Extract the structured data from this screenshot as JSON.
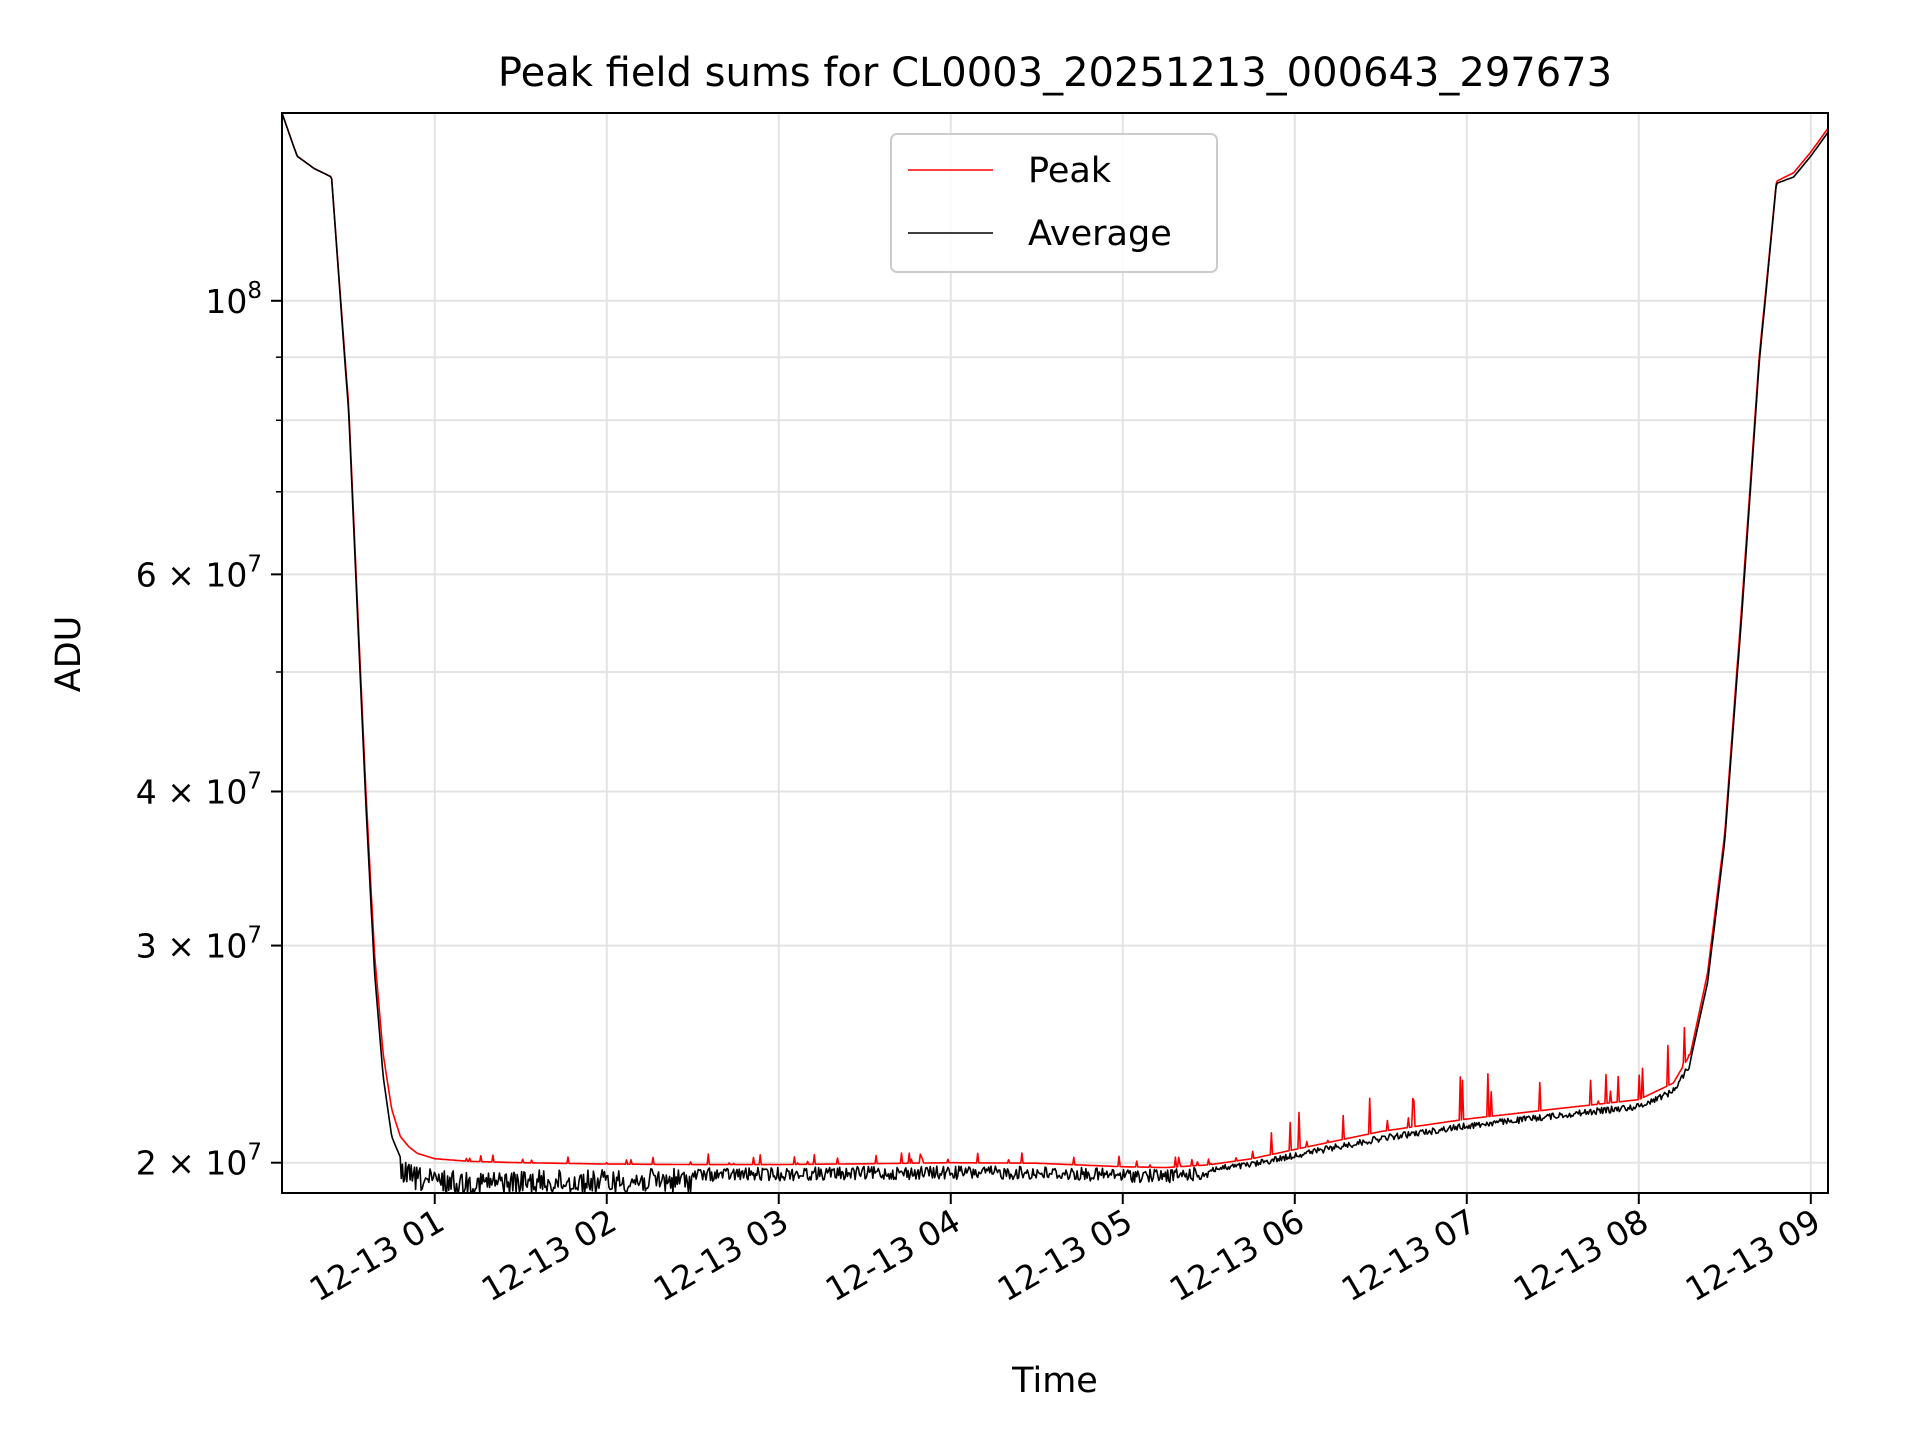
{
  "chart_data": {
    "type": "line",
    "title": "Peak field sums for CL0003_20251213_000643_297673",
    "xlabel": "Time",
    "ylabel": "ADU",
    "yscale": "log",
    "xlim_hours": [
      0.112,
      9.1
    ],
    "ylim": [
      18900000,
      142000000
    ],
    "grid": true,
    "legend": {
      "location": "upper center",
      "entries": [
        "Peak",
        "Average"
      ]
    },
    "x_ticks": [
      {
        "value": 1,
        "label": "12-13 01"
      },
      {
        "value": 2,
        "label": "12-13 02"
      },
      {
        "value": 3,
        "label": "12-13 03"
      },
      {
        "value": 4,
        "label": "12-13 04"
      },
      {
        "value": 5,
        "label": "12-13 05"
      },
      {
        "value": 6,
        "label": "12-13 06"
      },
      {
        "value": 7,
        "label": "12-13 07"
      },
      {
        "value": 8,
        "label": "12-13 08"
      },
      {
        "value": 9,
        "label": "12-13 09"
      }
    ],
    "y_ticks": [
      {
        "value": 20000000,
        "base": "2 × 10",
        "exp": "7"
      },
      {
        "value": 30000000,
        "base": "3 × 10",
        "exp": "7"
      },
      {
        "value": 40000000,
        "base": "4 × 10",
        "exp": "7"
      },
      {
        "value": 60000000,
        "base": "6 × 10",
        "exp": "7"
      },
      {
        "value": 100000000,
        "base": "10",
        "exp": "8"
      }
    ],
    "y_minor_ticks": [
      50000000,
      70000000,
      80000000,
      90000000
    ],
    "x_hours": [
      0.112,
      0.2,
      0.3,
      0.4,
      0.4,
      0.5,
      0.55,
      0.6,
      0.65,
      0.7,
      0.75,
      0.8,
      0.85,
      0.9,
      1.0,
      1.2,
      1.5,
      2.0,
      2.5,
      3.0,
      3.5,
      4.0,
      4.5,
      5.0,
      5.25,
      5.5,
      5.75,
      6.0,
      6.5,
      7.0,
      7.5,
      8.0,
      8.2,
      8.3,
      8.4,
      8.5,
      8.6,
      8.7,
      8.8,
      8.9,
      9.0,
      9.1
    ],
    "series": [
      {
        "name": "Peak",
        "color": "#ff0000",
        "values": [
          142000000,
          131000000,
          128000000,
          126000000,
          126000000,
          82000000,
          57000000,
          40000000,
          29500000,
          24500000,
          22100000,
          21000000,
          20600000,
          20350000,
          20150000,
          20050000,
          20000000,
          19950000,
          19930000,
          19930000,
          19960000,
          20000000,
          19980000,
          19850000,
          19820000,
          19920000,
          20150000,
          20500000,
          21200000,
          21700000,
          22100000,
          22500000,
          23200000,
          24500000,
          28500000,
          37000000,
          57000000,
          90000000,
          125000000,
          127000000,
          132000000,
          138000000
        ]
      },
      {
        "name": "Average",
        "color": "#000000",
        "values": [
          142000000,
          131000000,
          128000000,
          126000000,
          126000000,
          81000000,
          56000000,
          39000000,
          28500000,
          23500000,
          21000000,
          20200000,
          19950000,
          19850000,
          19750000,
          19700000,
          19720000,
          19750000,
          19800000,
          19830000,
          19860000,
          19880000,
          19870000,
          19780000,
          19760000,
          19850000,
          20050000,
          20400000,
          21050000,
          21550000,
          21950000,
          22350000,
          23000000,
          24200000,
          28000000,
          36500000,
          56000000,
          89000000,
          124500000,
          126000000,
          131000000,
          137000000
        ]
      }
    ]
  }
}
